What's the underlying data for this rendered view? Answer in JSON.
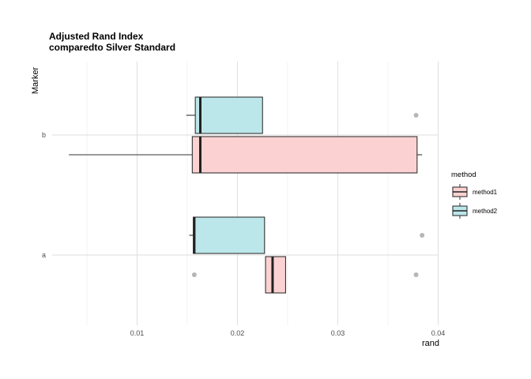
{
  "chart_data": {
    "type": "boxplot",
    "orientation": "horizontal",
    "title": [
      "Adjusted Rand Index",
      "comparedto Silver Standard"
    ],
    "xlabel": "rand",
    "ylabel": "Marker",
    "xlim": [
      0.0,
      0.04
    ],
    "x_ticks": [
      0.01,
      0.02,
      0.03,
      0.04
    ],
    "x_tick_labels": [
      "0.01",
      "0.02",
      "0.03",
      "0.04"
    ],
    "categories": [
      "a",
      "b"
    ],
    "grid": true,
    "legend": {
      "title": "method",
      "position": "right",
      "entries": [
        {
          "name": "method1",
          "color": "#F8766D",
          "fill": "#FBD2D1"
        },
        {
          "name": "method2",
          "color": "#00BFC4",
          "fill": "#BCE7EA"
        }
      ]
    },
    "boxes": [
      {
        "category": "b",
        "series": "method2",
        "whisker_low": 0.0149,
        "q1": 0.0158,
        "median": 0.0163,
        "q3": 0.0225,
        "whisker_high": 0.0225,
        "outliers": [
          0.0378
        ]
      },
      {
        "category": "b",
        "series": "method1",
        "whisker_low": 0.0032,
        "q1": 0.0155,
        "median": 0.0163,
        "q3": 0.0379,
        "whisker_high": 0.0384,
        "outliers": []
      },
      {
        "category": "a",
        "series": "method2",
        "whisker_low": 0.0152,
        "q1": 0.0156,
        "median": 0.0157,
        "q3": 0.0227,
        "whisker_high": 0.0227,
        "outliers": [
          0.0384
        ]
      },
      {
        "category": "a",
        "series": "method1",
        "whisker_low": 0.0228,
        "q1": 0.0228,
        "median": 0.0235,
        "q3": 0.0248,
        "whisker_high": 0.0248,
        "outliers": [
          0.0157,
          0.0378
        ]
      }
    ]
  }
}
